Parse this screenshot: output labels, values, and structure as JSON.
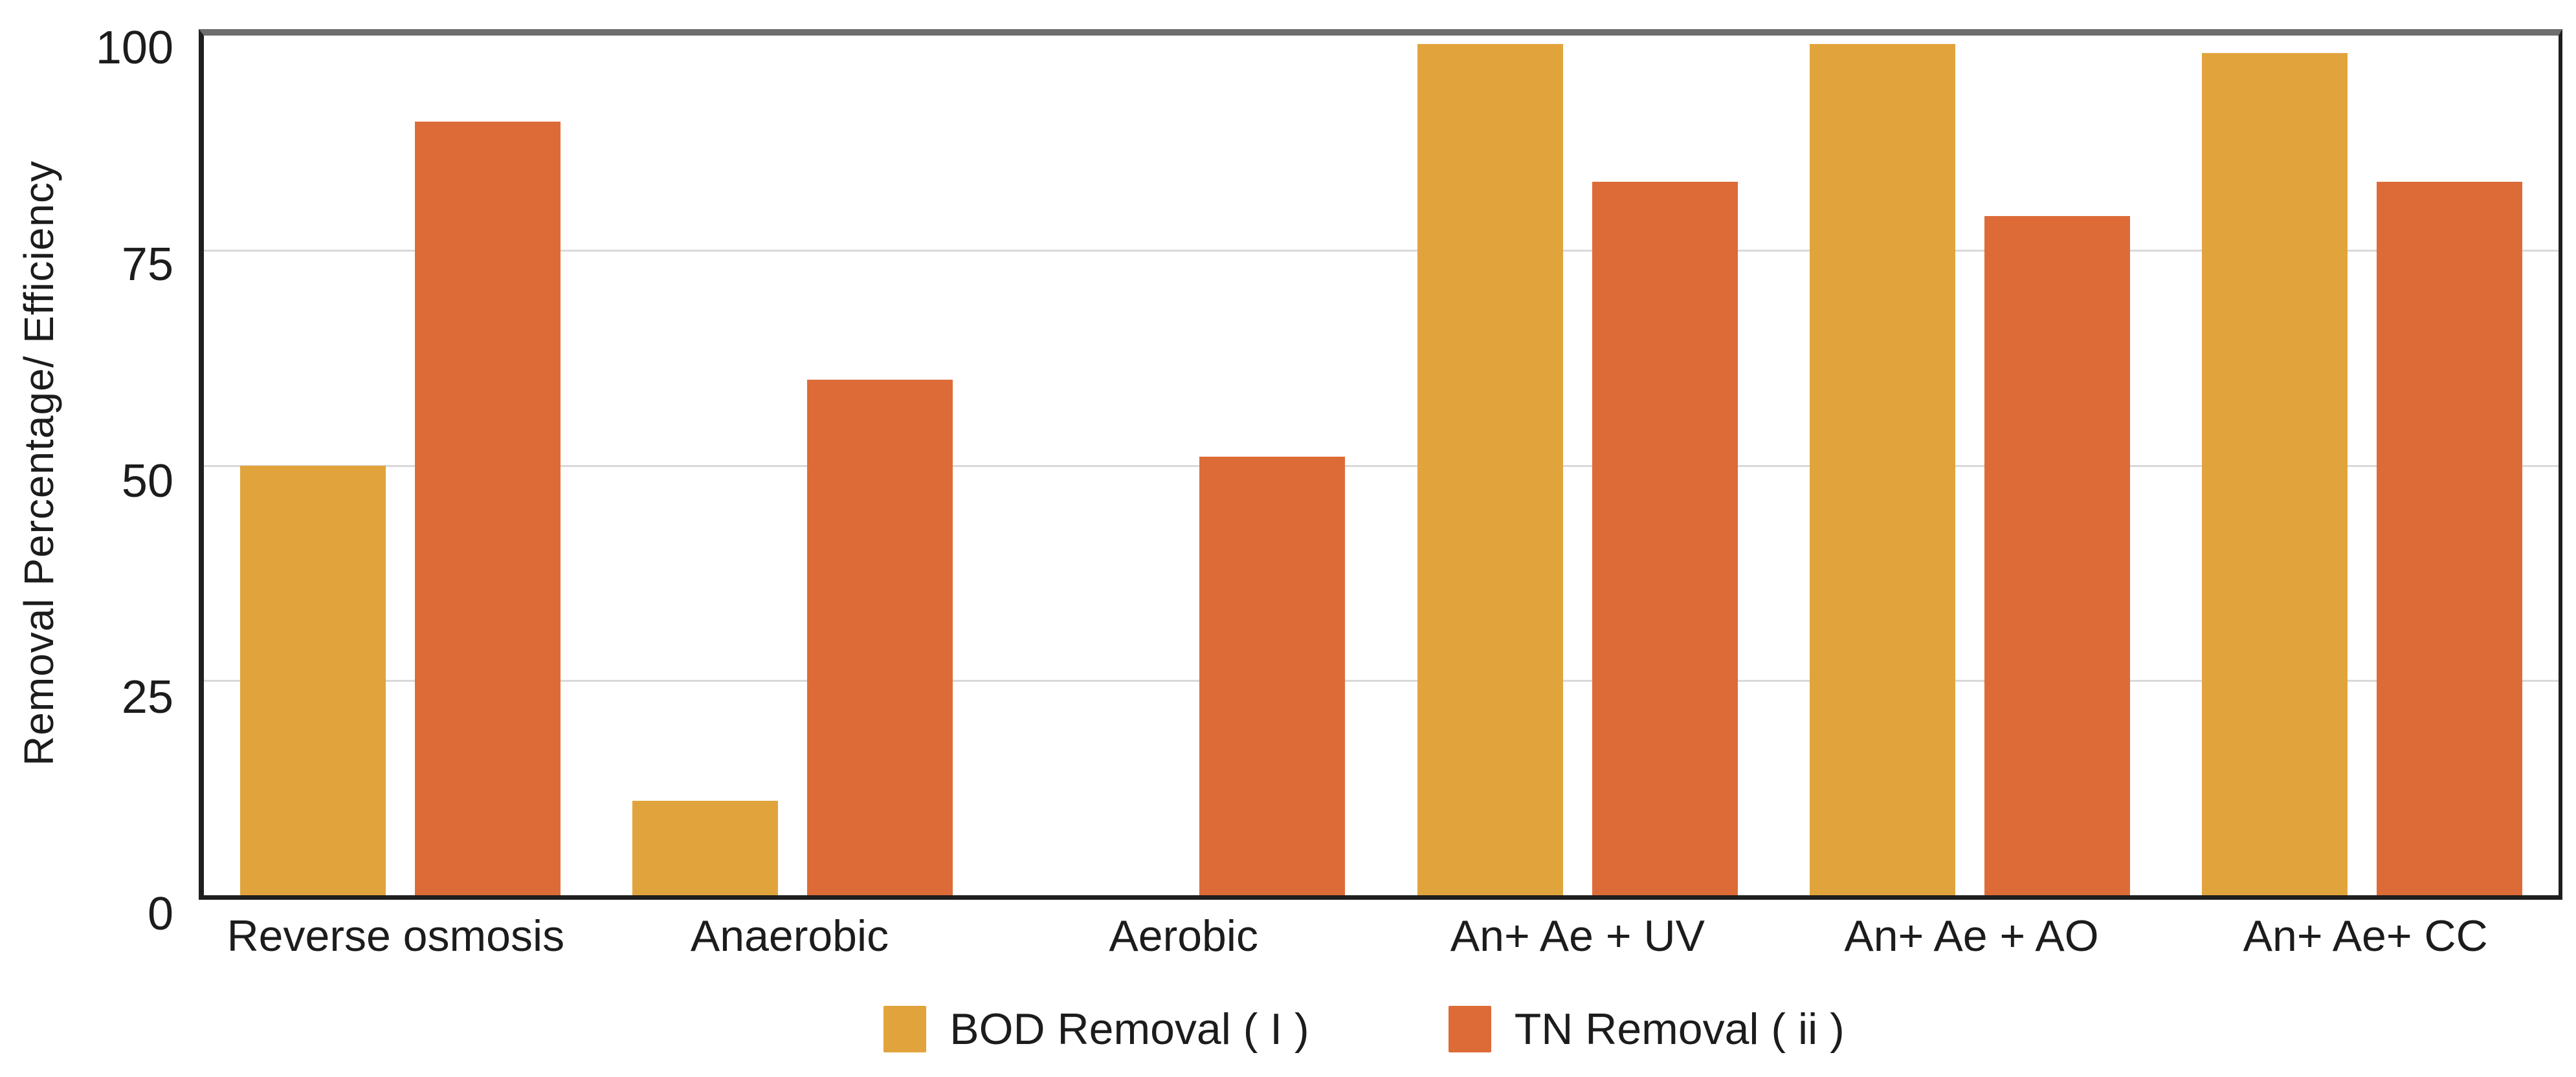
{
  "chart_data": {
    "type": "bar",
    "title": "",
    "categories": [
      "Reverse osmosis",
      "Anaerobic",
      "Aerobic",
      "An+ Ae + UV",
      "An+ Ae + AO",
      "An+ Ae+ CC"
    ],
    "series": [
      {
        "name": "BOD Removal ( I )",
        "color": "#E1A43C",
        "values": [
          50,
          11,
          0,
          99,
          99,
          98
        ]
      },
      {
        "name": "TN Removal ( ii )",
        "color": "#DD6B38",
        "values": [
          90,
          60,
          51,
          83,
          79,
          83
        ]
      }
    ],
    "xlabel": "",
    "ylabel": "Removal Percentage/ Efficiency",
    "ylim": [
      0,
      100
    ],
    "yticks": [
      0,
      25,
      50,
      75,
      100
    ],
    "gridline_ticks": [
      25,
      50,
      75
    ],
    "grid": true,
    "legend_position": "bottom"
  },
  "colors": {
    "bod_series": "#E1A43C",
    "tn_series": "#DD6B38",
    "gridline": "#D9D9D9",
    "axis_dark": "#1F1F1F",
    "axis_top_gray": "#6E6E6E",
    "text": "#1C1C1C",
    "background": "#FFFFFF"
  }
}
